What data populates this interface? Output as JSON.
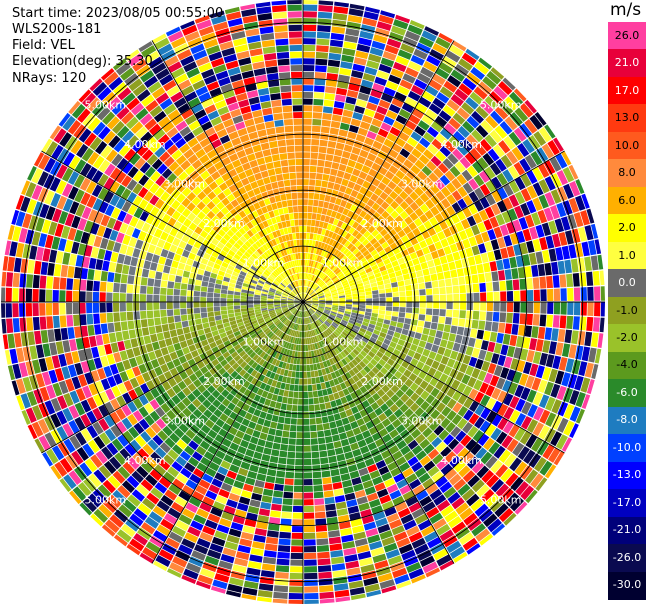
{
  "info": {
    "start_time": "Start time: 2023/08/05 00:55:00",
    "instrument": "WLS200s-181",
    "field": "Field: VEL",
    "elevation": "Elevation(deg): 35.30",
    "nrays": "NRays: 120"
  },
  "colorbar": {
    "unit": "m/s",
    "levels": [
      {
        "label": "26.0",
        "color": "#ff3fa0"
      },
      {
        "label": "21.0",
        "color": "#e8003a"
      },
      {
        "label": "17.0",
        "color": "#ff0000"
      },
      {
        "label": "13.0",
        "color": "#ff3a10"
      },
      {
        "label": "10.0",
        "color": "#ff5a1e"
      },
      {
        "label": "8.0",
        "color": "#ff8a3c"
      },
      {
        "label": "6.0",
        "color": "#ffb000"
      },
      {
        "label": "2.0",
        "color": "#ffff00"
      },
      {
        "label": "1.0",
        "color": "#ffff40"
      },
      {
        "label": "0.0",
        "color": "#6a6a6a"
      },
      {
        "label": "-1.0",
        "color": "#8fa020"
      },
      {
        "label": "-2.0",
        "color": "#9ac22a"
      },
      {
        "label": "-4.0",
        "color": "#5c9a1e"
      },
      {
        "label": "-6.0",
        "color": "#2a8a2a"
      },
      {
        "label": "-8.0",
        "color": "#1e7cc0"
      },
      {
        "label": "-10.0",
        "color": "#0040ff"
      },
      {
        "label": "-13.0",
        "color": "#0000ff"
      },
      {
        "label": "-17.0",
        "color": "#0000c0"
      },
      {
        "label": "-21.0",
        "color": "#00007a"
      },
      {
        "label": "-26.0",
        "color": "#0a0a50"
      },
      {
        "label": "-30.0",
        "color": "#000030"
      }
    ]
  },
  "chart_data": {
    "type": "heatmap",
    "projection": "polar-ppi",
    "field": "VEL",
    "units": "m/s",
    "nrays": 120,
    "range_rings": [
      {
        "label": "1.00km",
        "value": 1.0
      },
      {
        "label": "2.00km",
        "value": 2.0
      },
      {
        "label": "3.00km",
        "value": 3.0
      },
      {
        "label": "4.00km",
        "value": 4.0
      },
      {
        "label": "5.00km",
        "value": 5.0
      }
    ],
    "max_range_km": 5.4,
    "spokes_deg": [
      0,
      30,
      60,
      90,
      120,
      150,
      180,
      210,
      240,
      270,
      300,
      330
    ],
    "ring_label_azimuths_deg": [
      315,
      45,
      135,
      225
    ],
    "pattern": {
      "description_source": "velocity field: positive (yellow/orange) toward north and east, negative (green) toward south-west, noise beyond ~3.5 km",
      "clean_range_km": 3.5
    }
  }
}
